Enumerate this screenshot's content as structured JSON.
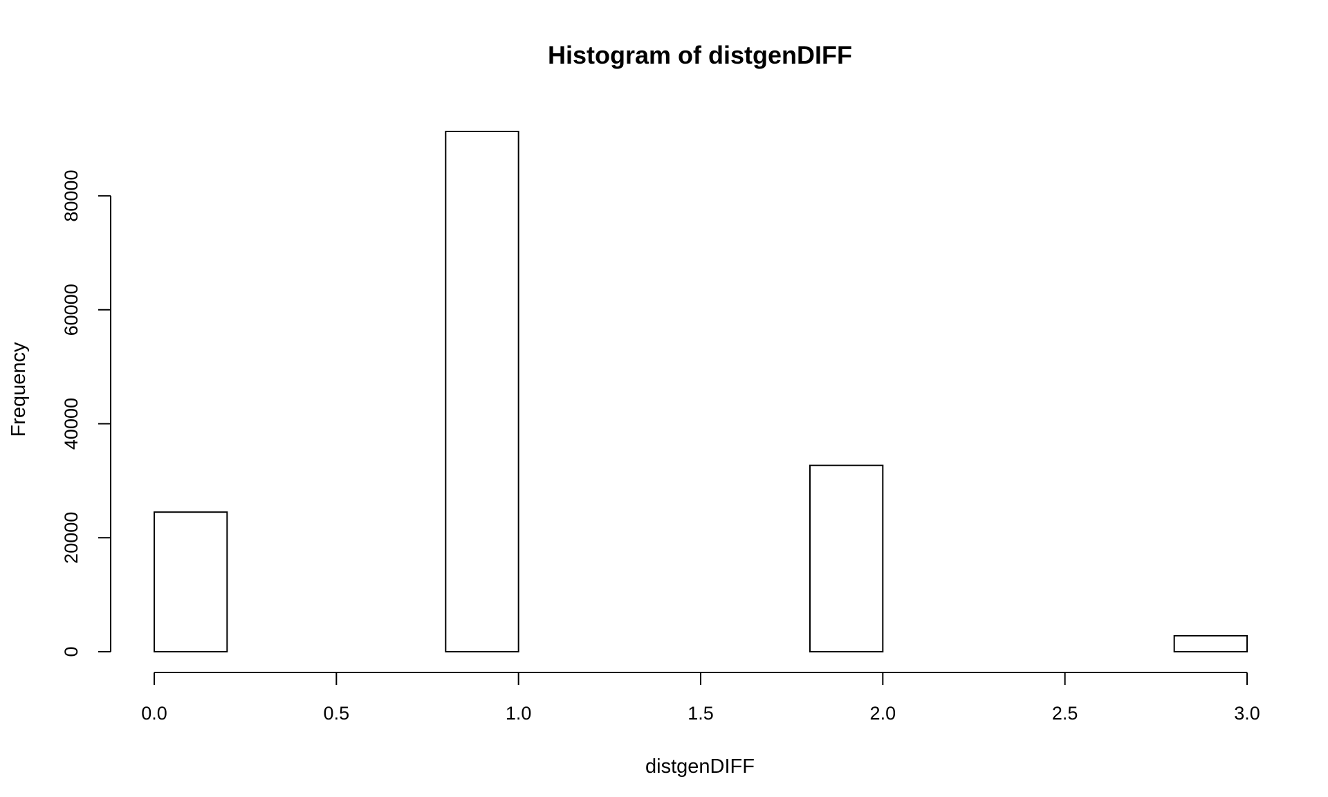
{
  "chart_data": {
    "type": "bar",
    "title": "Histogram of distgenDIFF",
    "xlabel": "distgenDIFF",
    "ylabel": "Frequency",
    "bin_width": 0.2,
    "bins": [
      {
        "x0": 0.0,
        "x1": 0.2,
        "count": 24500
      },
      {
        "x0": 0.2,
        "x1": 0.4,
        "count": 0
      },
      {
        "x0": 0.4,
        "x1": 0.6,
        "count": 0
      },
      {
        "x0": 0.6,
        "x1": 0.8,
        "count": 0
      },
      {
        "x0": 0.8,
        "x1": 1.0,
        "count": 91300
      },
      {
        "x0": 1.0,
        "x1": 1.2,
        "count": 0
      },
      {
        "x0": 1.2,
        "x1": 1.4,
        "count": 0
      },
      {
        "x0": 1.4,
        "x1": 1.6,
        "count": 0
      },
      {
        "x0": 1.6,
        "x1": 1.8,
        "count": 0
      },
      {
        "x0": 1.8,
        "x1": 2.0,
        "count": 32700
      },
      {
        "x0": 2.0,
        "x1": 2.2,
        "count": 0
      },
      {
        "x0": 2.2,
        "x1": 2.4,
        "count": 0
      },
      {
        "x0": 2.4,
        "x1": 2.6,
        "count": 0
      },
      {
        "x0": 2.6,
        "x1": 2.8,
        "count": 0
      },
      {
        "x0": 2.8,
        "x1": 3.0,
        "count": 2800
      }
    ],
    "xlim": [
      0.0,
      3.0
    ],
    "ylim": [
      0,
      91300
    ],
    "x_ticks": [
      {
        "value": 0.0,
        "label": "0.0"
      },
      {
        "value": 0.5,
        "label": "0.5"
      },
      {
        "value": 1.0,
        "label": "1.0"
      },
      {
        "value": 1.5,
        "label": "1.5"
      },
      {
        "value": 2.0,
        "label": "2.0"
      },
      {
        "value": 2.5,
        "label": "2.5"
      },
      {
        "value": 3.0,
        "label": "3.0"
      }
    ],
    "y_ticks": [
      {
        "value": 0,
        "label": "0"
      },
      {
        "value": 20000,
        "label": "20000"
      },
      {
        "value": 40000,
        "label": "40000"
      },
      {
        "value": 60000,
        "label": "60000"
      },
      {
        "value": 80000,
        "label": "80000"
      }
    ],
    "grid": false,
    "legend": "none"
  }
}
